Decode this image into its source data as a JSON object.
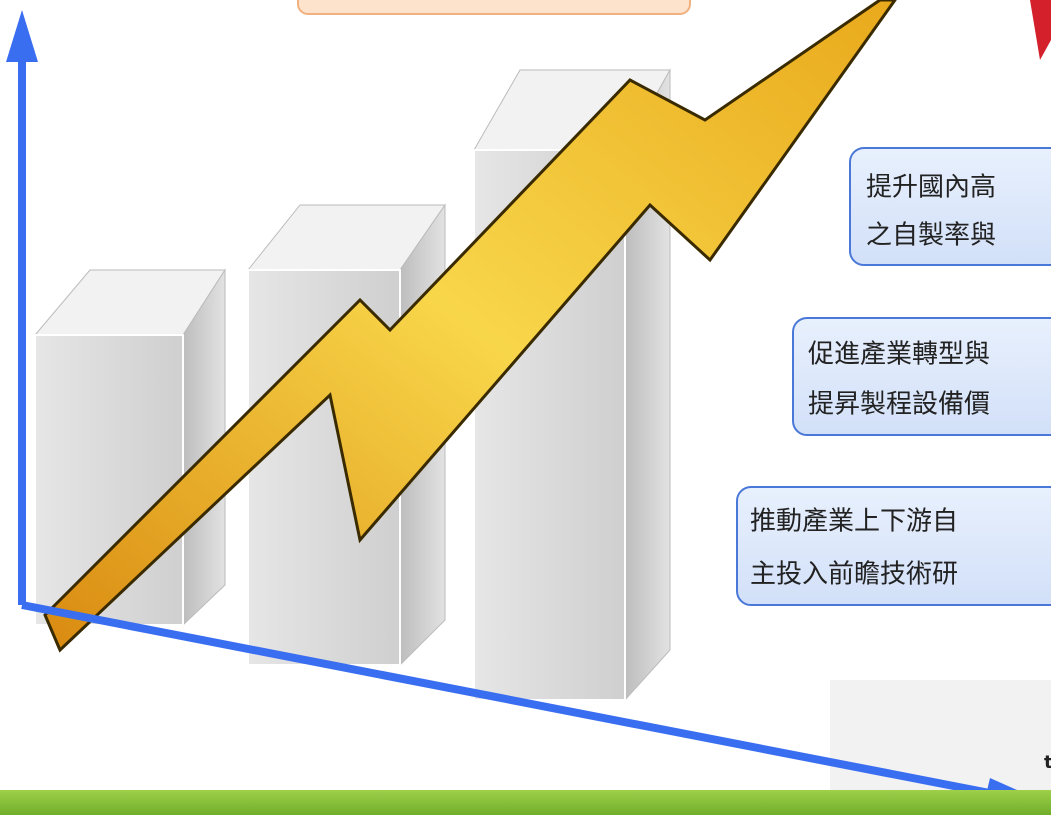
{
  "callouts": [
    {
      "lines": [
        "提升國內高",
        "之自製率與"
      ]
    },
    {
      "lines": [
        "促進產業轉型與",
        "提昇製程設備價"
      ]
    },
    {
      "lines": [
        "推動產業上下游自",
        "主投入前瞻技術研"
      ]
    }
  ],
  "footer_mark": "t"
}
